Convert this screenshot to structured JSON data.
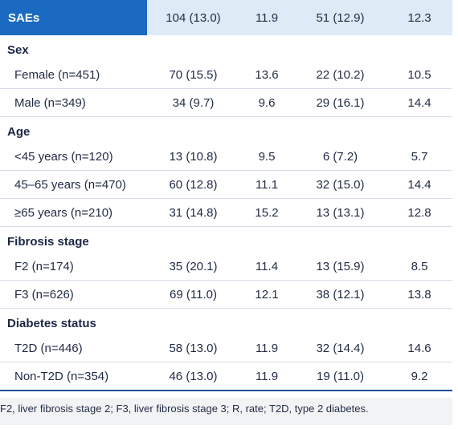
{
  "header": [
    "SAEs",
    "104 (13.0)",
    "11.9",
    "51 (12.9)",
    "12.3"
  ],
  "sections": [
    {
      "title": "Sex",
      "rows": [
        [
          "Female (n=451)",
          "70 (15.5)",
          "13.6",
          "22 (10.2)",
          "10.5"
        ],
        [
          "Male (n=349)",
          "34 (9.7)",
          "9.6",
          "29 (16.1)",
          "14.4"
        ]
      ]
    },
    {
      "title": "Age",
      "rows": [
        [
          "<45 years (n=120)",
          "13 (10.8)",
          "9.5",
          "6 (7.2)",
          "5.7"
        ],
        [
          "45–65 years (n=470)",
          "60 (12.8)",
          "11.1",
          "32 (15.0)",
          "14.4"
        ],
        [
          "≥65 years (n=210)",
          "31 (14.8)",
          "15.2",
          "13 (13.1)",
          "12.8"
        ]
      ]
    },
    {
      "title": "Fibrosis stage",
      "rows": [
        [
          "F2 (n=174)",
          "35 (20.1)",
          "11.4",
          "13 (15.9)",
          "8.5"
        ],
        [
          "F3 (n=626)",
          "69 (11.0)",
          "12.1",
          "38 (12.1)",
          "13.8"
        ]
      ]
    },
    {
      "title": "Diabetes status",
      "rows": [
        [
          "T2D (n=446)",
          "58 (13.0)",
          "11.9",
          "32 (14.4)",
          "14.6"
        ],
        [
          "Non-T2D (n=354)",
          "46 (13.0)",
          "11.9",
          "19 (11.0)",
          "9.2"
        ]
      ]
    }
  ],
  "footnote": "F2, liver fibrosis stage 2; F3, liver fibrosis stage 3; R, rate; T2D, type 2 diabetes."
}
